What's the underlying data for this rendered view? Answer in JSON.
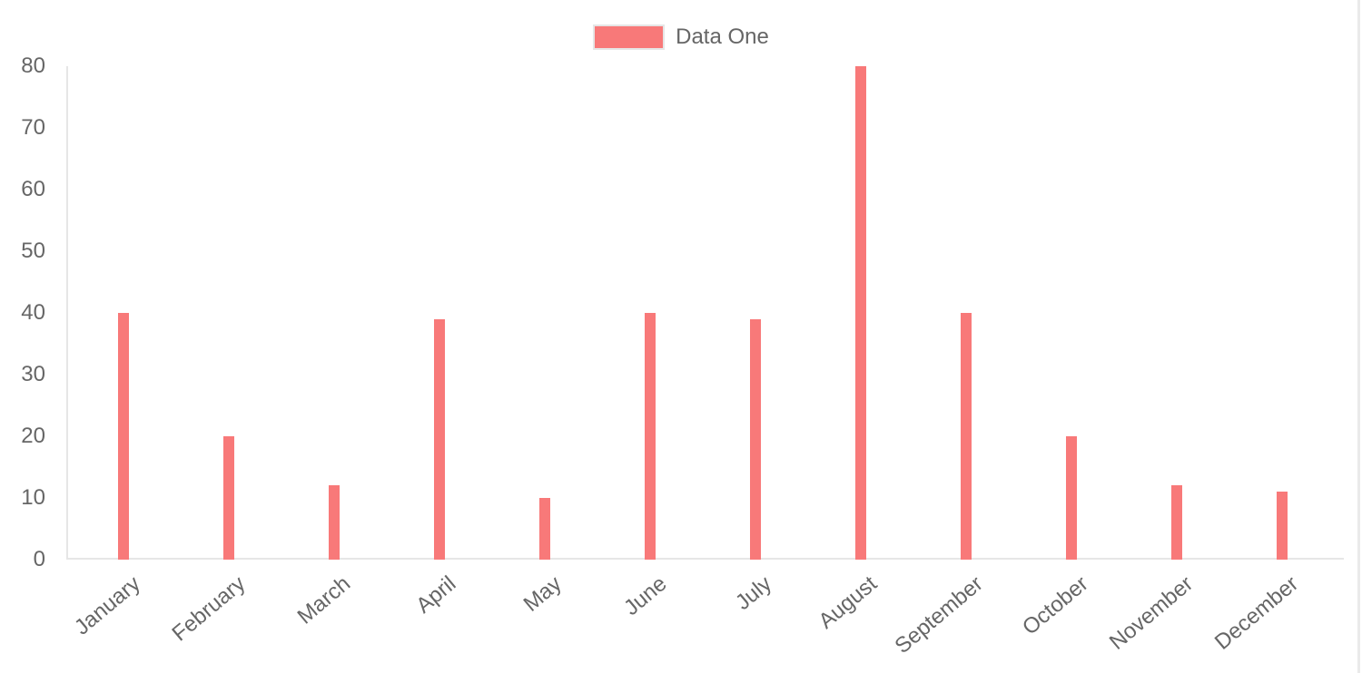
{
  "chart_data": {
    "type": "bar",
    "title": "",
    "categories": [
      "January",
      "February",
      "March",
      "April",
      "May",
      "June",
      "July",
      "August",
      "September",
      "October",
      "November",
      "December"
    ],
    "series": [
      {
        "name": "Data One",
        "color": "#f87979",
        "values": [
          40,
          20,
          12,
          39,
          10,
          40,
          39,
          80,
          40,
          20,
          12,
          11
        ]
      }
    ],
    "xlabel": "",
    "ylabel": "",
    "ylim": [
      0,
      80
    ],
    "ytick_step": 10,
    "ytick_labels": [
      "0",
      "10",
      "20",
      "30",
      "40",
      "50",
      "60",
      "70",
      "80"
    ],
    "grid": false,
    "legend_position": "top-center",
    "x_label_rotation_deg": -40
  },
  "legend": {
    "label": "Data One"
  },
  "colors": {
    "bar": "#f87979",
    "axis_line": "#e6e6e6",
    "text": "#666666",
    "background": "#ffffff",
    "legend_swatch_border": "#e6e6e6",
    "right_edge": "#eaeaea"
  }
}
